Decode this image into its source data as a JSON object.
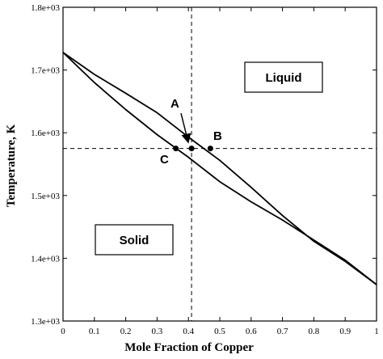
{
  "chart_data": {
    "type": "line",
    "title": "",
    "xlabel": "Mole Fraction of Copper",
    "ylabel": "Temperature, K",
    "xlim": [
      0,
      1
    ],
    "ylim": [
      1300,
      1800
    ],
    "x_ticks": [
      0,
      0.1,
      0.2,
      0.3,
      0.4,
      0.5,
      0.6,
      0.7,
      0.8,
      0.9,
      1
    ],
    "x_tick_labels": [
      "0",
      "0.1",
      "0.2",
      "0.3",
      "0.4",
      "0.5",
      "0.6",
      "0.7",
      "0.8",
      "0.9",
      "1"
    ],
    "y_ticks": [
      1300,
      1400,
      1500,
      1600,
      1700,
      1800
    ],
    "y_tick_labels": [
      "1.3e+03",
      "1.4e+03",
      "1.5e+03",
      "1.6e+03",
      "1.7e+03",
      "1.8e+03"
    ],
    "series": [
      {
        "x": [
          0,
          0.1,
          0.2,
          0.3,
          0.4,
          0.5,
          0.6,
          0.7,
          0.8,
          0.9,
          1
        ],
        "y": [
          1728,
          1693,
          1663,
          1632,
          1593,
          1556,
          1513,
          1468,
          1427,
          1395,
          1358
        ]
      },
      {
        "x": [
          0,
          0.1,
          0.2,
          0.3,
          0.4,
          0.5,
          0.6,
          0.7,
          0.8,
          0.9,
          1
        ],
        "y": [
          1728,
          1680,
          1637,
          1597,
          1561,
          1522,
          1490,
          1461,
          1429,
          1397,
          1358
        ]
      }
    ],
    "reference_lines": {
      "vertical_x": 0.41,
      "horizontal_y": 1575
    },
    "points": [
      {
        "label": "A",
        "x": 0.41,
        "y": 1575
      },
      {
        "label": "B",
        "x": 0.47,
        "y": 1575
      },
      {
        "label": "C",
        "x": 0.36,
        "y": 1575
      }
    ],
    "region_labels": {
      "liquid": "Liquid",
      "solid": "Solid"
    },
    "grid": false,
    "legend": "none"
  }
}
